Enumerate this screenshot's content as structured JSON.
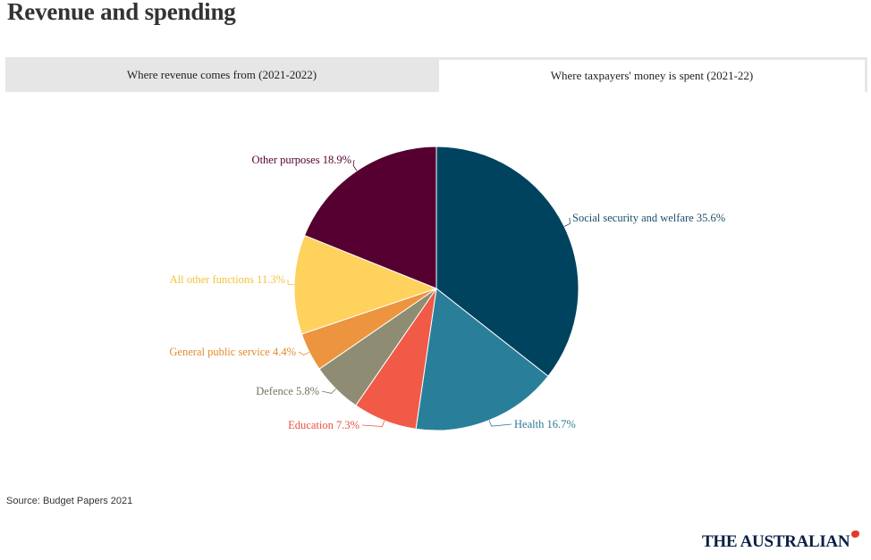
{
  "page": {
    "title": "Revenue and spending",
    "source": "Source: Budget Papers 2021",
    "logo": "THE AUSTRALIAN"
  },
  "tabs": [
    {
      "label": "Where revenue comes from (2021-2022)",
      "active": false
    },
    {
      "label": "Where taxpayers' money is spent (2021-22)",
      "active": true
    }
  ],
  "chart_data": {
    "type": "pie",
    "title": "",
    "start_angle": "12 o'clock",
    "direction": "clockwise",
    "slices": [
      {
        "label": "Social security and welfare",
        "value": 35.6,
        "display": "Social security and welfare 35.6%",
        "color": "#00435f",
        "label_color": "#1b4e6b",
        "label_side": "right"
      },
      {
        "label": "Health",
        "value": 16.7,
        "display": "Health 16.7%",
        "color": "#297f99",
        "label_color": "#2a7c96",
        "label_side": "right"
      },
      {
        "label": "Education",
        "value": 7.3,
        "display": "Education 7.3%",
        "color": "#f05a46",
        "label_color": "#e8513e",
        "label_side": "left"
      },
      {
        "label": "Defence",
        "value": 5.8,
        "display": "Defence 5.8%",
        "color": "#8e8c72",
        "label_color": "#75735e",
        "label_side": "left"
      },
      {
        "label": "General public service",
        "value": 4.4,
        "display": "General public service 4.4%",
        "color": "#ec953e",
        "label_color": "#e38a2f",
        "label_side": "left"
      },
      {
        "label": "All other functions",
        "value": 11.3,
        "display": "All other functions 11.3%",
        "color": "#ffd15d",
        "label_color": "#f4c23e",
        "label_side": "left"
      },
      {
        "label": "Other purposes",
        "value": 18.9,
        "display": "Other purposes 18.9%",
        "color": "#550030",
        "label_color": "#550030",
        "label_side": "left"
      }
    ]
  }
}
